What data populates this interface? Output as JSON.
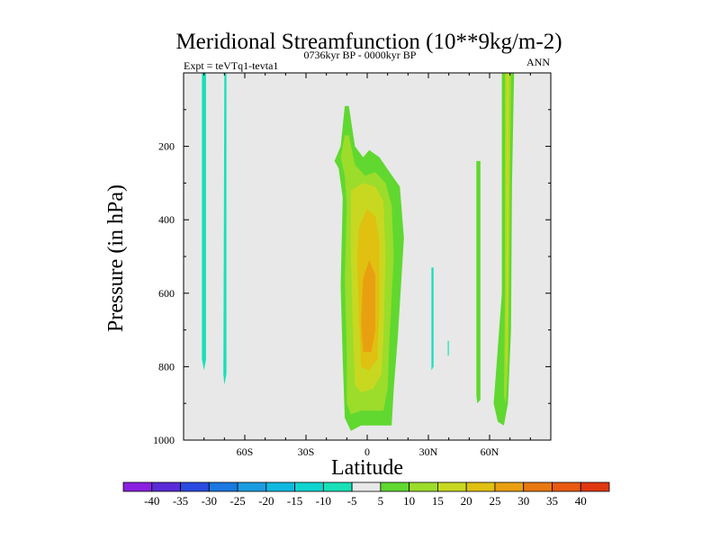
{
  "chart_data": {
    "type": "heatmap",
    "title": "Meridional Streamfunction (10**9kg/m-2)",
    "left_label": "Expt = teVTq1-tevta1",
    "center_label": "0736kyr BP - 0000kyr BP",
    "right_label": "ANN",
    "xlabel": "Latitude",
    "ylabel": "Pressure (in hPa)",
    "xlim": [
      -90,
      90
    ],
    "ylim": [
      1000,
      0
    ],
    "x_ticks": [
      {
        "value": -60,
        "label": "60S"
      },
      {
        "value": -30,
        "label": "30S"
      },
      {
        "value": 0,
        "label": "0"
      },
      {
        "value": 30,
        "label": "30N"
      },
      {
        "value": 60,
        "label": "60N"
      }
    ],
    "y_ticks": [
      {
        "value": 200,
        "label": "200"
      },
      {
        "value": 400,
        "label": "400"
      },
      {
        "value": 600,
        "label": "600"
      },
      {
        "value": 800,
        "label": "800"
      },
      {
        "value": 1000,
        "label": "1000"
      }
    ],
    "background_color": "#e8e8e8",
    "colorbar": {
      "labels": [
        "-40",
        "-35",
        "-30",
        "-25",
        "-20",
        "-15",
        "-10",
        "-5",
        "5",
        "10",
        "15",
        "20",
        "25",
        "30",
        "35",
        "40"
      ],
      "colors": [
        "#8a1fe0",
        "#5a2ad8",
        "#2a4ae0",
        "#1a78e0",
        "#1a9ce0",
        "#10b8e0",
        "#10d4d0",
        "#18e0b8",
        "#e8e8e8",
        "#60d830",
        "#9cdc2a",
        "#c8d820",
        "#e0c010",
        "#e8a010",
        "#e87810",
        "#e85a10",
        "#e03810"
      ]
    },
    "contour_regions": [
      {
        "level": "-5",
        "color": "#18e0b8",
        "polygon": [
          [
            -81,
            0
          ],
          [
            -79,
            0
          ],
          [
            -79,
            780
          ],
          [
            -80,
            810
          ],
          [
            -81,
            780
          ]
        ]
      },
      {
        "level": "-5",
        "color": "#18e0b8",
        "polygon": [
          [
            -70,
            0
          ],
          [
            -69,
            0
          ],
          [
            -69,
            820
          ],
          [
            -70,
            850
          ],
          [
            -70.5,
            820
          ]
        ]
      },
      {
        "level": "-5",
        "color": "#18e0b8",
        "polygon": [
          [
            31.5,
            530
          ],
          [
            32.5,
            530
          ],
          [
            32.5,
            800
          ],
          [
            31.5,
            810
          ]
        ]
      },
      {
        "level": "-5",
        "color": "#18e0b8",
        "polygon": [
          [
            39.5,
            730
          ],
          [
            40,
            730
          ],
          [
            40,
            770
          ],
          [
            39.5,
            770
          ]
        ]
      },
      {
        "level": "5",
        "color": "#60d830",
        "polygon": [
          [
            -16,
            240
          ],
          [
            -13,
            200
          ],
          [
            -11,
            90
          ],
          [
            -9,
            90
          ],
          [
            -6,
            200
          ],
          [
            -2,
            230
          ],
          [
            1,
            210
          ],
          [
            6,
            230
          ],
          [
            11,
            270
          ],
          [
            16,
            310
          ],
          [
            18,
            450
          ],
          [
            15,
            720
          ],
          [
            13,
            860
          ],
          [
            12,
            960
          ],
          [
            -3,
            960
          ],
          [
            -8,
            975
          ],
          [
            -11,
            940
          ],
          [
            -12,
            780
          ],
          [
            -13,
            580
          ],
          [
            -12,
            340
          ],
          [
            -14,
            260
          ]
        ]
      },
      {
        "level": "10",
        "color": "#9cdc2a",
        "polygon": [
          [
            -13,
            230
          ],
          [
            -11,
            170
          ],
          [
            -9,
            170
          ],
          [
            -6,
            250
          ],
          [
            -1,
            280
          ],
          [
            4,
            270
          ],
          [
            9,
            300
          ],
          [
            12,
            360
          ],
          [
            13,
            500
          ],
          [
            11,
            720
          ],
          [
            10,
            860
          ],
          [
            8,
            920
          ],
          [
            -3,
            920
          ],
          [
            -8,
            930
          ],
          [
            -10,
            900
          ],
          [
            -10,
            760
          ],
          [
            -11,
            560
          ],
          [
            -10,
            360
          ],
          [
            -11,
            280
          ]
        ]
      },
      {
        "level": "15",
        "color": "#c8d820",
        "polygon": [
          [
            -8,
            320
          ],
          [
            -2,
            300
          ],
          [
            4,
            310
          ],
          [
            8,
            350
          ],
          [
            9,
            500
          ],
          [
            8,
            720
          ],
          [
            7,
            820
          ],
          [
            3,
            860
          ],
          [
            -3,
            870
          ],
          [
            -6,
            850
          ],
          [
            -7,
            700
          ],
          [
            -8,
            500
          ]
        ]
      },
      {
        "level": "20",
        "color": "#e0c010",
        "polygon": [
          [
            -4,
            420
          ],
          [
            0,
            370
          ],
          [
            4,
            390
          ],
          [
            6,
            460
          ],
          [
            6,
            640
          ],
          [
            5,
            780
          ],
          [
            1,
            810
          ],
          [
            -3,
            800
          ],
          [
            -4,
            660
          ],
          [
            -5,
            500
          ]
        ]
      },
      {
        "level": "25",
        "color": "#e8a010",
        "polygon": [
          [
            -2,
            560
          ],
          [
            1,
            510
          ],
          [
            4,
            550
          ],
          [
            4,
            700
          ],
          [
            2,
            760
          ],
          [
            -2,
            760
          ],
          [
            -3,
            680
          ]
        ]
      },
      {
        "level": "5",
        "color": "#60d830",
        "polygon": [
          [
            53.5,
            240
          ],
          [
            55.5,
            240
          ],
          [
            55.5,
            890
          ],
          [
            54,
            900
          ],
          [
            53.5,
            880
          ]
        ]
      },
      {
        "level": "5",
        "color": "#60d830",
        "polygon": [
          [
            66,
            0
          ],
          [
            72,
            0
          ],
          [
            71,
            300
          ],
          [
            70.5,
            700
          ],
          [
            69,
            900
          ],
          [
            67,
            960
          ],
          [
            64,
            950
          ],
          [
            62,
            900
          ],
          [
            64,
            750
          ],
          [
            66,
            600
          ],
          [
            66,
            300
          ]
        ]
      },
      {
        "level": "10",
        "color": "#9cdc2a",
        "polygon": [
          [
            67.5,
            0
          ],
          [
            70.5,
            0
          ],
          [
            70,
            300
          ],
          [
            69.5,
            600
          ],
          [
            69,
            800
          ],
          [
            68,
            900
          ],
          [
            67,
            880
          ],
          [
            67.5,
            600
          ],
          [
            67.5,
            300
          ]
        ]
      },
      {
        "level": "15",
        "color": "#c8d820",
        "polygon": [
          [
            68.2,
            0
          ],
          [
            69.5,
            0
          ],
          [
            69.3,
            300
          ],
          [
            69,
            600
          ],
          [
            68.5,
            780
          ],
          [
            68,
            800
          ],
          [
            68.2,
            600
          ],
          [
            68.2,
            300
          ]
        ]
      }
    ]
  }
}
